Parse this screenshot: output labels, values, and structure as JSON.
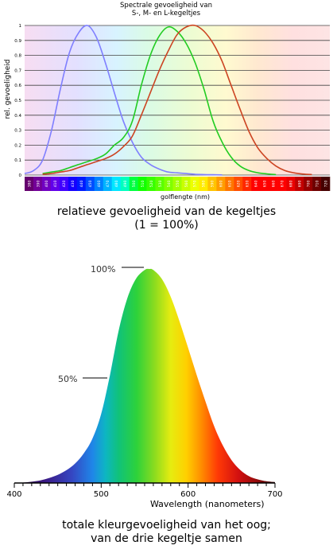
{
  "chart_data": [
    {
      "type": "line",
      "title": [
        "Spectrale gevoeligheid van",
        "S-, M- en L-kegeltjes"
      ],
      "ylabel": "rel. gevoeligheid",
      "xlabel": "golflengte (nm)",
      "xlim": [
        380,
        720
      ],
      "ylim": [
        0,
        1
      ],
      "yticks": [
        "0",
        "0.1",
        "0.2",
        "0.3",
        "0.4",
        "0.5",
        "0.6",
        "0.7",
        "0.8",
        "0.9",
        "1"
      ],
      "xticks": [
        "380",
        "390",
        "400",
        "410",
        "420",
        "430",
        "440",
        "450",
        "460",
        "470",
        "480",
        "490",
        "500",
        "510",
        "520",
        "530",
        "540",
        "550",
        "560",
        "570",
        "580",
        "590",
        "600",
        "610",
        "620",
        "630",
        "640",
        "650",
        "660",
        "670",
        "680",
        "690",
        "700",
        "710",
        "720"
      ],
      "grid": true,
      "series": [
        {
          "color": "#7f7fff",
          "x": [
            380,
            390,
            400,
            410,
            420,
            430,
            440,
            450,
            460,
            470,
            480,
            490,
            500,
            510,
            520,
            530,
            540,
            550,
            560,
            570,
            580,
            590,
            600
          ],
          "values": [
            0.01,
            0.03,
            0.1,
            0.3,
            0.58,
            0.82,
            0.95,
            1.0,
            0.92,
            0.75,
            0.55,
            0.36,
            0.22,
            0.12,
            0.07,
            0.04,
            0.02,
            0.015,
            0.01,
            0.005,
            0.003,
            0.002,
            0.001
          ]
        },
        {
          "color": "#22cc22",
          "x": [
            400,
            410,
            420,
            430,
            440,
            450,
            460,
            470,
            480,
            490,
            500,
            510,
            520,
            530,
            540,
            550,
            560,
            570,
            580,
            590,
            600,
            610,
            620,
            630,
            640,
            650,
            660
          ],
          "values": [
            0.01,
            0.02,
            0.03,
            0.05,
            0.07,
            0.09,
            0.11,
            0.14,
            0.2,
            0.25,
            0.36,
            0.6,
            0.8,
            0.93,
            0.99,
            0.96,
            0.88,
            0.75,
            0.57,
            0.36,
            0.22,
            0.12,
            0.06,
            0.03,
            0.015,
            0.008,
            0.003
          ]
        },
        {
          "color": "#cc4422",
          "x": [
            400,
            410,
            420,
            430,
            440,
            450,
            460,
            470,
            480,
            490,
            500,
            510,
            520,
            530,
            540,
            550,
            560,
            570,
            580,
            590,
            600,
            610,
            620,
            630,
            640,
            650,
            660,
            670,
            680,
            690,
            700
          ],
          "values": [
            0.005,
            0.01,
            0.02,
            0.03,
            0.05,
            0.07,
            0.09,
            0.11,
            0.14,
            0.19,
            0.26,
            0.4,
            0.55,
            0.7,
            0.83,
            0.94,
            0.99,
            1.0,
            0.96,
            0.88,
            0.76,
            0.6,
            0.44,
            0.29,
            0.18,
            0.11,
            0.06,
            0.03,
            0.015,
            0.007,
            0.003
          ]
        }
      ]
    },
    {
      "type": "area",
      "title": "",
      "xlabel": "Wavelength (nanometers)",
      "ylabel": "",
      "xlim": [
        400,
        700
      ],
      "ylim": [
        0,
        1
      ],
      "xticks": [
        "400",
        "500",
        "600",
        "700"
      ],
      "annotations": [
        "100%",
        "50%"
      ],
      "grid": false,
      "series": [
        {
          "x": [
            400,
            410,
            420,
            430,
            440,
            450,
            460,
            470,
            480,
            490,
            500,
            510,
            520,
            530,
            540,
            550,
            555,
            560,
            570,
            580,
            590,
            600,
            610,
            620,
            630,
            640,
            650,
            660,
            670,
            680,
            690,
            700
          ],
          "values": [
            0.0,
            0.002,
            0.006,
            0.012,
            0.023,
            0.038,
            0.06,
            0.091,
            0.139,
            0.208,
            0.323,
            0.503,
            0.71,
            0.862,
            0.954,
            0.995,
            1.0,
            0.995,
            0.952,
            0.87,
            0.757,
            0.631,
            0.503,
            0.381,
            0.265,
            0.175,
            0.107,
            0.061,
            0.032,
            0.017,
            0.008,
            0.004
          ]
        }
      ]
    }
  ],
  "captions": {
    "chart1": [
      "relatieve gevoeligheid van de kegeltjes",
      "(1 = 100%)"
    ],
    "chart2": [
      "totale kleurgevoeligheid van het oog;",
      "van de drie kegeltje samen"
    ]
  }
}
